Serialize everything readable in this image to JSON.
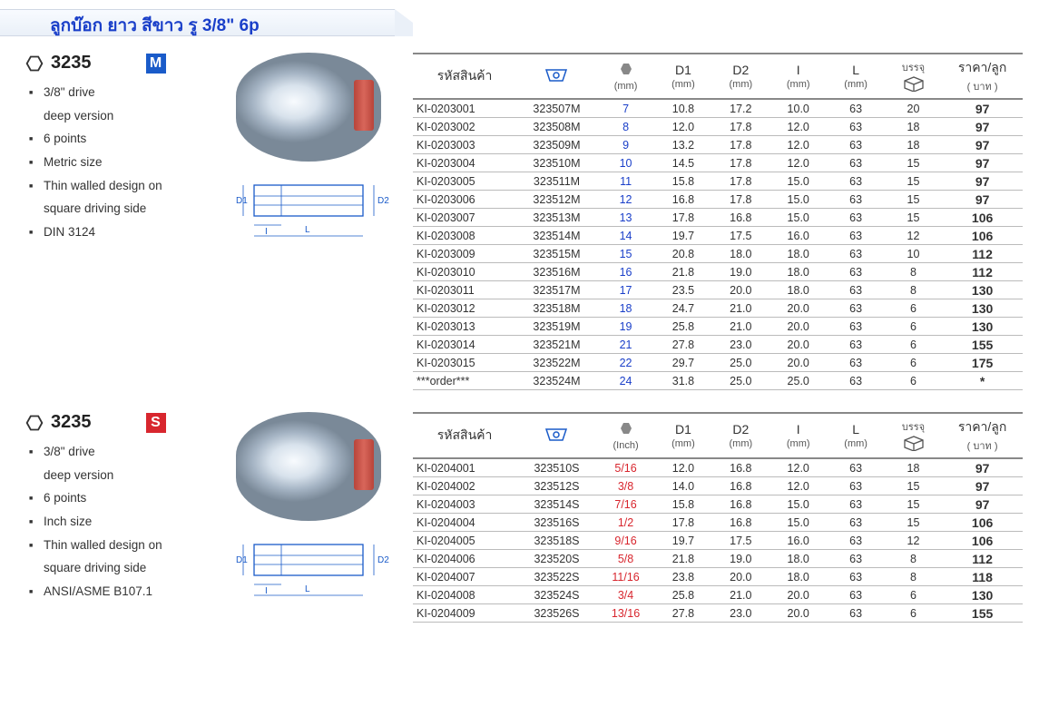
{
  "title": "ลูกบ๊อก ยาว สีขาว รู 3/8\" 6p",
  "section_metric": {
    "model": "3235",
    "badge": "M",
    "features": [
      "3/8\" drive deep version",
      "6 points",
      "Metric size",
      "Thin walled design on square driving side",
      "DIN 3124"
    ],
    "diagram_labels": {
      "d1": "D1",
      "d2": "D2",
      "i": "I",
      "l": "L"
    }
  },
  "section_inch": {
    "model": "3235",
    "badge": "S",
    "features": [
      "3/8\" drive deep version",
      "6 points",
      "Inch size",
      "Thin walled design on square driving side",
      "ANSI/ASME B107.1"
    ]
  },
  "table_headers": {
    "code": "รหัสสินค้า",
    "brand_icon": "kingtony-logo",
    "size_mm": "(mm)",
    "size_inch": "(Inch)",
    "d1": "D1",
    "d1_sub": "(mm)",
    "d2": "D2",
    "d2_sub": "(mm)",
    "i": "I",
    "i_sub": "(mm)",
    "l": "L",
    "l_sub": "(mm)",
    "pack": "บรรจุ",
    "price": "ราคา/ลูก",
    "price_sub": "( บาท )"
  },
  "metric_rows": [
    {
      "code": "KI-0203001",
      "pn": "323507M",
      "size": "7",
      "d1": "10.8",
      "d2": "17.2",
      "i": "10.0",
      "l": "63",
      "pack": "20",
      "price": "97"
    },
    {
      "code": "KI-0203002",
      "pn": "323508M",
      "size": "8",
      "d1": "12.0",
      "d2": "17.8",
      "i": "12.0",
      "l": "63",
      "pack": "18",
      "price": "97"
    },
    {
      "code": "KI-0203003",
      "pn": "323509M",
      "size": "9",
      "d1": "13.2",
      "d2": "17.8",
      "i": "12.0",
      "l": "63",
      "pack": "18",
      "price": "97"
    },
    {
      "code": "KI-0203004",
      "pn": "323510M",
      "size": "10",
      "d1": "14.5",
      "d2": "17.8",
      "i": "12.0",
      "l": "63",
      "pack": "15",
      "price": "97"
    },
    {
      "code": "KI-0203005",
      "pn": "323511M",
      "size": "11",
      "d1": "15.8",
      "d2": "17.8",
      "i": "15.0",
      "l": "63",
      "pack": "15",
      "price": "97"
    },
    {
      "code": "KI-0203006",
      "pn": "323512M",
      "size": "12",
      "d1": "16.8",
      "d2": "17.8",
      "i": "15.0",
      "l": "63",
      "pack": "15",
      "price": "97"
    },
    {
      "code": "KI-0203007",
      "pn": "323513M",
      "size": "13",
      "d1": "17.8",
      "d2": "16.8",
      "i": "15.0",
      "l": "63",
      "pack": "15",
      "price": "106"
    },
    {
      "code": "KI-0203008",
      "pn": "323514M",
      "size": "14",
      "d1": "19.7",
      "d2": "17.5",
      "i": "16.0",
      "l": "63",
      "pack": "12",
      "price": "106"
    },
    {
      "code": "KI-0203009",
      "pn": "323515M",
      "size": "15",
      "d1": "20.8",
      "d2": "18.0",
      "i": "18.0",
      "l": "63",
      "pack": "10",
      "price": "112"
    },
    {
      "code": "KI-0203010",
      "pn": "323516M",
      "size": "16",
      "d1": "21.8",
      "d2": "19.0",
      "i": "18.0",
      "l": "63",
      "pack": "8",
      "price": "112"
    },
    {
      "code": "KI-0203011",
      "pn": "323517M",
      "size": "17",
      "d1": "23.5",
      "d2": "20.0",
      "i": "18.0",
      "l": "63",
      "pack": "8",
      "price": "130"
    },
    {
      "code": "KI-0203012",
      "pn": "323518M",
      "size": "18",
      "d1": "24.7",
      "d2": "21.0",
      "i": "20.0",
      "l": "63",
      "pack": "6",
      "price": "130"
    },
    {
      "code": "KI-0203013",
      "pn": "323519M",
      "size": "19",
      "d1": "25.8",
      "d2": "21.0",
      "i": "20.0",
      "l": "63",
      "pack": "6",
      "price": "130"
    },
    {
      "code": "KI-0203014",
      "pn": "323521M",
      "size": "21",
      "d1": "27.8",
      "d2": "23.0",
      "i": "20.0",
      "l": "63",
      "pack": "6",
      "price": "155"
    },
    {
      "code": "KI-0203015",
      "pn": "323522M",
      "size": "22",
      "d1": "29.7",
      "d2": "25.0",
      "i": "20.0",
      "l": "63",
      "pack": "6",
      "price": "175"
    },
    {
      "code": "***order***",
      "pn": "323524M",
      "size": "24",
      "d1": "31.8",
      "d2": "25.0",
      "i": "25.0",
      "l": "63",
      "pack": "6",
      "price": "*"
    }
  ],
  "inch_rows": [
    {
      "code": "KI-0204001",
      "pn": "323510S",
      "size": "5/16",
      "d1": "12.0",
      "d2": "16.8",
      "i": "12.0",
      "l": "63",
      "pack": "18",
      "price": "97"
    },
    {
      "code": "KI-0204002",
      "pn": "323512S",
      "size": "3/8",
      "d1": "14.0",
      "d2": "16.8",
      "i": "12.0",
      "l": "63",
      "pack": "15",
      "price": "97"
    },
    {
      "code": "KI-0204003",
      "pn": "323514S",
      "size": "7/16",
      "d1": "15.8",
      "d2": "16.8",
      "i": "15.0",
      "l": "63",
      "pack": "15",
      "price": "97"
    },
    {
      "code": "KI-0204004",
      "pn": "323516S",
      "size": "1/2",
      "d1": "17.8",
      "d2": "16.8",
      "i": "15.0",
      "l": "63",
      "pack": "15",
      "price": "106"
    },
    {
      "code": "KI-0204005",
      "pn": "323518S",
      "size": "9/16",
      "d1": "19.7",
      "d2": "17.5",
      "i": "16.0",
      "l": "63",
      "pack": "12",
      "price": "106"
    },
    {
      "code": "KI-0204006",
      "pn": "323520S",
      "size": "5/8",
      "d1": "21.8",
      "d2": "19.0",
      "i": "18.0",
      "l": "63",
      "pack": "8",
      "price": "112"
    },
    {
      "code": "KI-0204007",
      "pn": "323522S",
      "size": "11/16",
      "d1": "23.8",
      "d2": "20.0",
      "i": "18.0",
      "l": "63",
      "pack": "8",
      "price": "118"
    },
    {
      "code": "KI-0204008",
      "pn": "323524S",
      "size": "3/4",
      "d1": "25.8",
      "d2": "21.0",
      "i": "20.0",
      "l": "63",
      "pack": "6",
      "price": "130"
    },
    {
      "code": "KI-0204009",
      "pn": "323526S",
      "size": "13/16",
      "d1": "27.8",
      "d2": "23.0",
      "i": "20.0",
      "l": "63",
      "pack": "6",
      "price": "155"
    }
  ],
  "colors": {
    "blue": "#1a3fc9",
    "red": "#d8262e",
    "grid": "#bbbbbb",
    "header_border": "#888888"
  }
}
